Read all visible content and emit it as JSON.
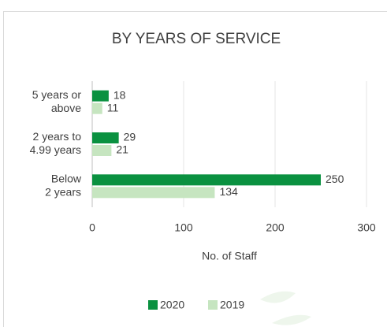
{
  "chart_data": {
    "type": "bar",
    "orientation": "horizontal",
    "title": "BY YEARS OF SERVICE",
    "categories": [
      [
        "5 years or",
        "above"
      ],
      [
        "2 years to",
        "4.99 years"
      ],
      [
        "Below",
        "2 years"
      ]
    ],
    "series": [
      {
        "name": "2020",
        "color": "#0a9140",
        "values": [
          18,
          29,
          250
        ]
      },
      {
        "name": "2019",
        "color": "#c6e5c0",
        "values": [
          11,
          21,
          134
        ]
      }
    ],
    "x_label": "No. of Staff",
    "xlim": [
      0,
      300
    ],
    "xticks": [
      0,
      100,
      200,
      300
    ],
    "grid": true
  }
}
